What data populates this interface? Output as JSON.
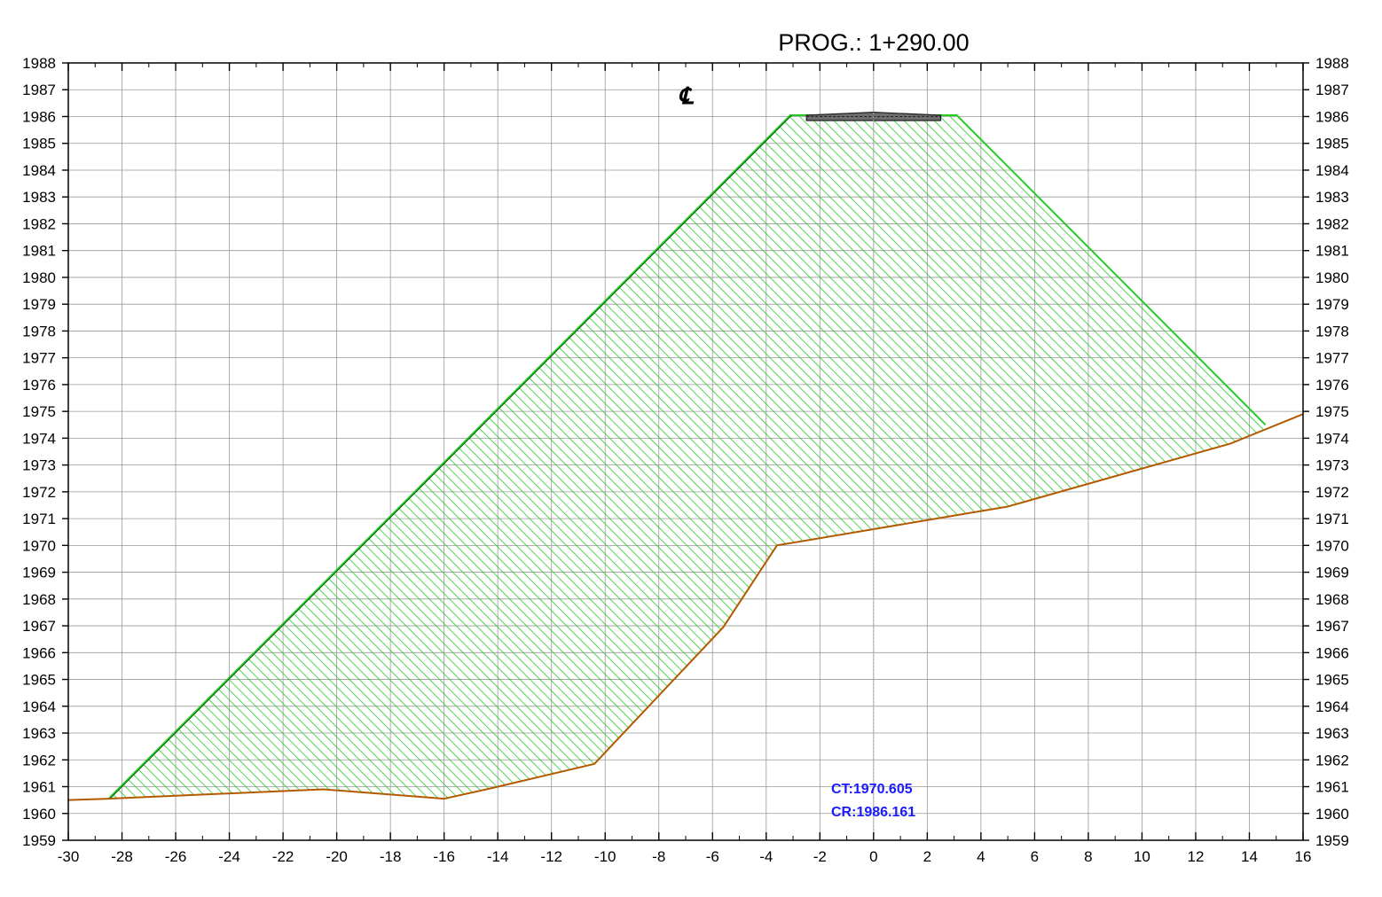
{
  "chart_data": {
    "type": "area",
    "title": "PROG.: 1+290.00",
    "centerline_symbol": "℄",
    "xlim": [
      -30,
      16
    ],
    "ylim": [
      1959,
      1988
    ],
    "x_ticks": [
      -30,
      -28,
      -26,
      -24,
      -22,
      -20,
      -18,
      -16,
      -14,
      -12,
      -10,
      -8,
      -6,
      -4,
      -2,
      0,
      2,
      4,
      6,
      8,
      10,
      12,
      14,
      16
    ],
    "y_ticks": [
      1959,
      1960,
      1961,
      1962,
      1963,
      1964,
      1965,
      1966,
      1967,
      1968,
      1969,
      1970,
      1971,
      1972,
      1973,
      1974,
      1975,
      1976,
      1977,
      1978,
      1979,
      1980,
      1981,
      1982,
      1983,
      1984,
      1985,
      1986,
      1987,
      1988
    ],
    "grid": true,
    "series": [
      {
        "role": "terrain",
        "color": "#b35a00",
        "points": [
          [
            -30,
            1960.5
          ],
          [
            -28.5,
            1960.55
          ],
          [
            -20.5,
            1960.9
          ],
          [
            -16,
            1960.55
          ],
          [
            -14.2,
            1960.95
          ],
          [
            -10.4,
            1961.85
          ],
          [
            -5.6,
            1966.95
          ],
          [
            -3.6,
            1970.0
          ],
          [
            0,
            1970.605
          ],
          [
            5,
            1971.45
          ],
          [
            13.3,
            1973.8
          ],
          [
            16,
            1974.9
          ]
        ]
      },
      {
        "role": "embankment",
        "color": "#22cc22",
        "points": [
          [
            -28.5,
            1960.55
          ],
          [
            -3.1,
            1986.05
          ],
          [
            3.1,
            1986.05
          ],
          [
            14.6,
            1974.5
          ]
        ]
      },
      {
        "role": "pavement",
        "color": "#555555",
        "points": [
          [
            -2.5,
            1985.85
          ],
          [
            -2.5,
            1986.05
          ],
          [
            0,
            1986.16
          ],
          [
            2.5,
            1986.05
          ],
          [
            2.5,
            1985.85
          ]
        ]
      }
    ],
    "annotations": {
      "ct": "CT:1970.605",
      "cr": "CR:1986.161"
    },
    "annotation_color": "#1a1aff",
    "fill_color": "#22cc22"
  }
}
